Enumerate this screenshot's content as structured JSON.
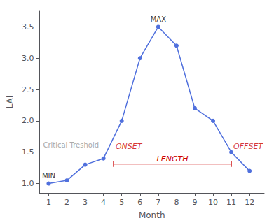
{
  "chart_data": {
    "type": "line",
    "x": [
      1,
      2,
      3,
      4,
      5,
      6,
      7,
      8,
      9,
      10,
      11,
      12
    ],
    "values": [
      1.0,
      1.05,
      1.3,
      1.4,
      2.0,
      3.0,
      3.5,
      3.2,
      2.2,
      2.0,
      1.5,
      1.2
    ],
    "xlabel": "Month",
    "ylabel": "LAI",
    "xlim": [
      0.5,
      12.8
    ],
    "ylim": [
      0.85,
      3.75
    ],
    "xticks": [
      1,
      2,
      3,
      4,
      5,
      6,
      7,
      8,
      9,
      10,
      11,
      12
    ],
    "yticks": [
      {
        "value": 1.0,
        "label": "1.0"
      },
      1.5,
      {
        "value": 2.0,
        "label": "2.0"
      },
      2.5,
      {
        "value": 3.0,
        "label": "3.0"
      },
      3.5
    ],
    "grid": false,
    "marker": "circle",
    "line_style": "solid",
    "threshold": {
      "value": 1.5,
      "label": "Critical Treshold",
      "color": "#aaaaaa",
      "line_style": "dotted"
    },
    "annotations": [
      {
        "text": "MIN",
        "x": 1,
        "y": 1.0
      },
      {
        "text": "MAX",
        "x": 7,
        "y": 3.5
      }
    ],
    "span": {
      "from": 4.55,
      "to": 11.0,
      "from_label": "ONSET",
      "to_label": "OFFSET",
      "label": "LENGTH",
      "color": "#cc0000"
    }
  }
}
